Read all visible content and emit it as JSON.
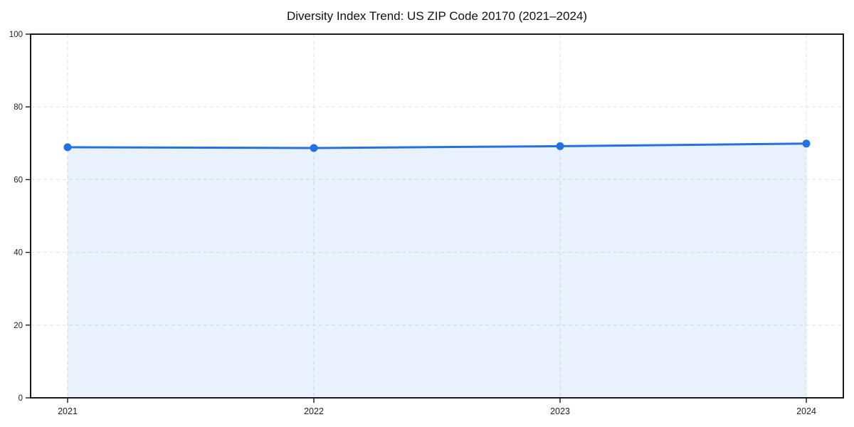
{
  "chart_data": {
    "type": "area",
    "title": "Diversity Index Trend: US ZIP Code 20170 (2021–2024)",
    "categories": [
      "2021",
      "2022",
      "2023",
      "2024"
    ],
    "series": [
      {
        "name": "Diversity Index",
        "values": [
          68.9,
          68.7,
          69.2,
          69.9
        ]
      }
    ],
    "xlabel": "",
    "ylabel": "",
    "ylim": [
      0,
      100
    ],
    "yticks": [
      0,
      20,
      40,
      60,
      80,
      100
    ],
    "grid": true,
    "grid_style": "dashed",
    "legend": "none",
    "colors": {
      "line": "#2272e5",
      "marker": "#2272e5",
      "fill": "rgba(34,114,229,0.10)",
      "grid": "#dfe2e6",
      "frame": "#1a1a1a",
      "tick_label": "#222222",
      "title": "#111111"
    }
  }
}
